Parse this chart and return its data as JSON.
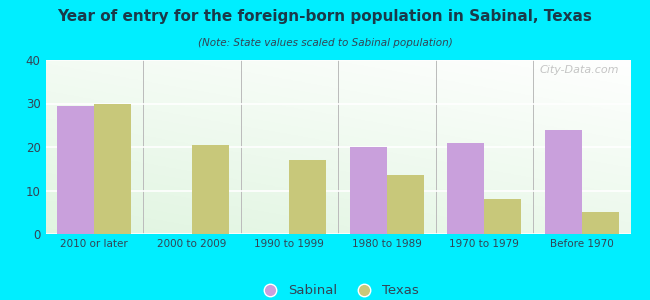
{
  "title": "Year of entry for the foreign-born population in Sabinal, Texas",
  "subtitle": "(Note: State values scaled to Sabinal population)",
  "categories": [
    "2010 or later",
    "2000 to 2009",
    "1990 to 1999",
    "1980 to 1989",
    "1970 to 1979",
    "Before 1970"
  ],
  "sabinal_values": [
    29.5,
    0,
    0,
    20,
    21,
    24
  ],
  "texas_values": [
    30,
    20.5,
    17,
    13.5,
    8,
    5
  ],
  "sabinal_color": "#c9a0dc",
  "texas_color": "#c8c87a",
  "background_color": "#00eeff",
  "ylim": [
    0,
    40
  ],
  "yticks": [
    0,
    10,
    20,
    30,
    40
  ],
  "bar_width": 0.38,
  "watermark": "City-Data.com"
}
